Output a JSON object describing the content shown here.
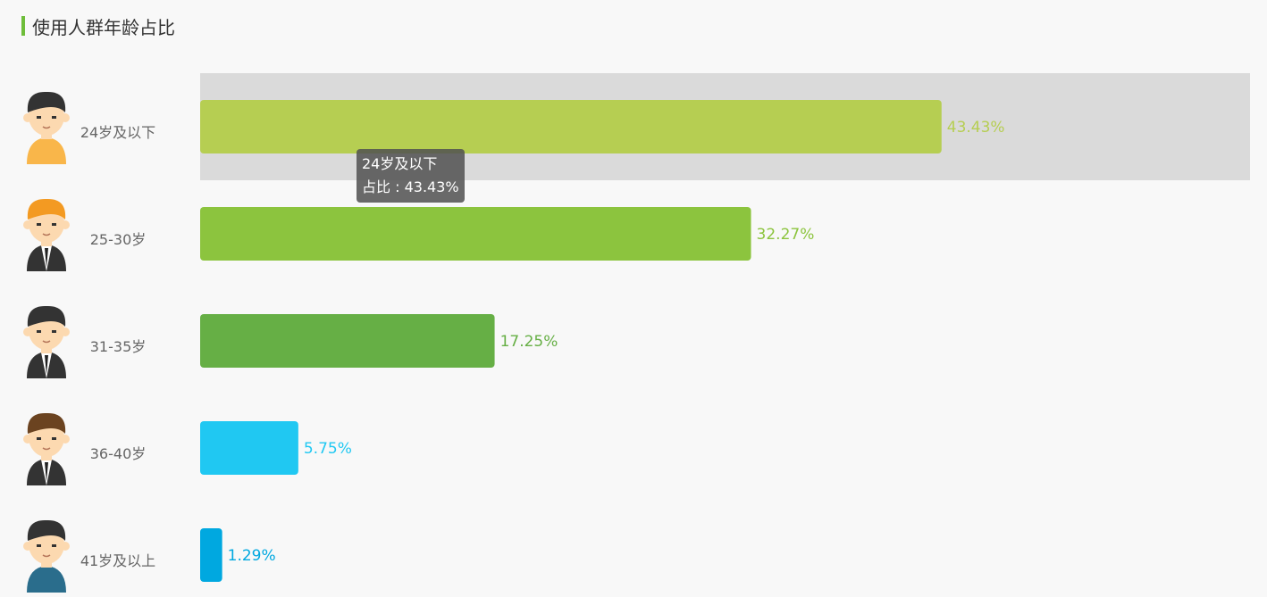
{
  "header": {
    "title": "使用人群年龄占比"
  },
  "chart_data": {
    "type": "bar",
    "orientation": "horizontal",
    "categories": [
      "24岁及以下",
      "25-30岁",
      "31-35岁",
      "36-40岁",
      "41岁及以上"
    ],
    "values": [
      43.43,
      32.27,
      17.25,
      5.75,
      1.29
    ],
    "value_labels": [
      "43.43%",
      "32.27%",
      "17.25%",
      "5.75%",
      "1.29%"
    ],
    "colors": [
      "#b6ce52",
      "#8cc43e",
      "#66af45",
      "#20c8f2",
      "#00a8e0"
    ],
    "xlim": [
      0,
      61.5
    ],
    "grid": false,
    "highlight_index": 0
  },
  "tooltip": {
    "category": "24岁及以下",
    "label": "占比",
    "value": "43.43%"
  },
  "avatars": [
    {
      "icon": "young-man-yellow-shirt-icon",
      "skin": "#fcd9b0",
      "hair": "#333333",
      "shirt": "#f9b64a"
    },
    {
      "icon": "man-orange-hair-suit-icon",
      "skin": "#fcd9b0",
      "hair": "#f39a22",
      "shirt": "#333333"
    },
    {
      "icon": "man-black-suit-icon",
      "skin": "#fcd9b0",
      "hair": "#333333",
      "shirt": "#333333"
    },
    {
      "icon": "man-mustache-suit-icon",
      "skin": "#fcd9b0",
      "hair": "#6b4320",
      "shirt": "#333333"
    },
    {
      "icon": "older-man-blue-shirt-icon",
      "skin": "#fcd9b0",
      "hair": "#333333",
      "shirt": "#2a6d8c"
    }
  ]
}
